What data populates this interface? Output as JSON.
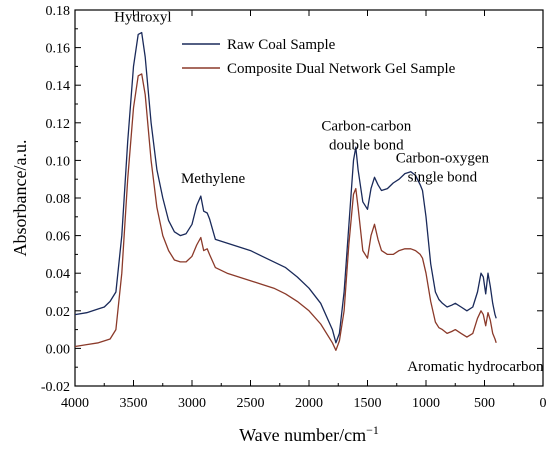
{
  "chart_data": {
    "type": "line",
    "title": "",
    "xlabel": "Wave number/cm",
    "xlabel_sup": "−1",
    "ylabel": "Absorbance/a.u.",
    "xlim": [
      4000,
      0
    ],
    "x_reversed": true,
    "ylim": [
      -0.02,
      0.18
    ],
    "x_ticks": [
      4000,
      3500,
      3000,
      2500,
      2000,
      1500,
      1000,
      500,
      0
    ],
    "y_ticks": [
      -0.02,
      0.0,
      0.02,
      0.04,
      0.06,
      0.08,
      0.1,
      0.12,
      0.14,
      0.16,
      0.18
    ],
    "y_tick_labels": [
      "-0.02",
      "0.00",
      "0.02",
      "0.04",
      "0.06",
      "0.08",
      "0.10",
      "0.12",
      "0.14",
      "0.16",
      "0.18"
    ],
    "grid": false,
    "legend_position": "top-right",
    "series": [
      {
        "name": "Raw Coal Sample",
        "color": "#1a2a5a",
        "points": [
          [
            4000,
            0.018
          ],
          [
            3900,
            0.019
          ],
          [
            3800,
            0.021
          ],
          [
            3750,
            0.022
          ],
          [
            3700,
            0.025
          ],
          [
            3650,
            0.03
          ],
          [
            3600,
            0.06
          ],
          [
            3550,
            0.11
          ],
          [
            3500,
            0.15
          ],
          [
            3460,
            0.167
          ],
          [
            3430,
            0.168
          ],
          [
            3400,
            0.155
          ],
          [
            3350,
            0.12
          ],
          [
            3300,
            0.095
          ],
          [
            3250,
            0.08
          ],
          [
            3200,
            0.068
          ],
          [
            3150,
            0.062
          ],
          [
            3100,
            0.06
          ],
          [
            3050,
            0.061
          ],
          [
            3000,
            0.066
          ],
          [
            2960,
            0.076
          ],
          [
            2925,
            0.081
          ],
          [
            2900,
            0.073
          ],
          [
            2870,
            0.072
          ],
          [
            2850,
            0.069
          ],
          [
            2800,
            0.058
          ],
          [
            2700,
            0.056
          ],
          [
            2600,
            0.054
          ],
          [
            2500,
            0.052
          ],
          [
            2400,
            0.049
          ],
          [
            2300,
            0.046
          ],
          [
            2200,
            0.043
          ],
          [
            2100,
            0.038
          ],
          [
            2000,
            0.032
          ],
          [
            1900,
            0.024
          ],
          [
            1800,
            0.01
          ],
          [
            1770,
            0.003
          ],
          [
            1740,
            0.008
          ],
          [
            1700,
            0.03
          ],
          [
            1660,
            0.065
          ],
          [
            1620,
            0.1
          ],
          [
            1600,
            0.107
          ],
          [
            1580,
            0.095
          ],
          [
            1540,
            0.078
          ],
          [
            1500,
            0.074
          ],
          [
            1470,
            0.085
          ],
          [
            1440,
            0.091
          ],
          [
            1410,
            0.087
          ],
          [
            1380,
            0.084
          ],
          [
            1330,
            0.085
          ],
          [
            1280,
            0.088
          ],
          [
            1230,
            0.09
          ],
          [
            1180,
            0.093
          ],
          [
            1130,
            0.094
          ],
          [
            1090,
            0.092
          ],
          [
            1050,
            0.087
          ],
          [
            1030,
            0.084
          ],
          [
            1000,
            0.07
          ],
          [
            960,
            0.045
          ],
          [
            920,
            0.03
          ],
          [
            890,
            0.026
          ],
          [
            860,
            0.024
          ],
          [
            820,
            0.022
          ],
          [
            780,
            0.023
          ],
          [
            750,
            0.024
          ],
          [
            700,
            0.022
          ],
          [
            650,
            0.02
          ],
          [
            600,
            0.022
          ],
          [
            560,
            0.03
          ],
          [
            530,
            0.04
          ],
          [
            510,
            0.038
          ],
          [
            490,
            0.029
          ],
          [
            470,
            0.04
          ],
          [
            450,
            0.033
          ],
          [
            430,
            0.024
          ],
          [
            410,
            0.018
          ],
          [
            400,
            0.016
          ]
        ]
      },
      {
        "name": "Composite Dual Network Gel Sample",
        "color": "#8b3a2a",
        "points": [
          [
            4000,
            0.001
          ],
          [
            3900,
            0.002
          ],
          [
            3800,
            0.003
          ],
          [
            3750,
            0.004
          ],
          [
            3700,
            0.005
          ],
          [
            3650,
            0.01
          ],
          [
            3600,
            0.04
          ],
          [
            3550,
            0.09
          ],
          [
            3500,
            0.128
          ],
          [
            3460,
            0.145
          ],
          [
            3430,
            0.146
          ],
          [
            3400,
            0.135
          ],
          [
            3350,
            0.1
          ],
          [
            3300,
            0.075
          ],
          [
            3250,
            0.06
          ],
          [
            3200,
            0.052
          ],
          [
            3150,
            0.047
          ],
          [
            3100,
            0.046
          ],
          [
            3050,
            0.046
          ],
          [
            3000,
            0.049
          ],
          [
            2960,
            0.055
          ],
          [
            2925,
            0.059
          ],
          [
            2900,
            0.052
          ],
          [
            2870,
            0.053
          ],
          [
            2850,
            0.05
          ],
          [
            2800,
            0.043
          ],
          [
            2700,
            0.04
          ],
          [
            2600,
            0.038
          ],
          [
            2500,
            0.036
          ],
          [
            2400,
            0.034
          ],
          [
            2300,
            0.032
          ],
          [
            2200,
            0.029
          ],
          [
            2100,
            0.025
          ],
          [
            2000,
            0.02
          ],
          [
            1900,
            0.013
          ],
          [
            1800,
            0.003
          ],
          [
            1770,
            -0.001
          ],
          [
            1740,
            0.004
          ],
          [
            1700,
            0.02
          ],
          [
            1660,
            0.055
          ],
          [
            1620,
            0.082
          ],
          [
            1600,
            0.085
          ],
          [
            1580,
            0.075
          ],
          [
            1540,
            0.052
          ],
          [
            1500,
            0.048
          ],
          [
            1470,
            0.06
          ],
          [
            1440,
            0.066
          ],
          [
            1410,
            0.058
          ],
          [
            1380,
            0.052
          ],
          [
            1330,
            0.05
          ],
          [
            1280,
            0.05
          ],
          [
            1230,
            0.052
          ],
          [
            1180,
            0.053
          ],
          [
            1130,
            0.053
          ],
          [
            1090,
            0.052
          ],
          [
            1050,
            0.05
          ],
          [
            1030,
            0.048
          ],
          [
            1000,
            0.04
          ],
          [
            960,
            0.025
          ],
          [
            920,
            0.014
          ],
          [
            890,
            0.011
          ],
          [
            860,
            0.01
          ],
          [
            820,
            0.008
          ],
          [
            780,
            0.009
          ],
          [
            750,
            0.01
          ],
          [
            700,
            0.008
          ],
          [
            650,
            0.006
          ],
          [
            600,
            0.008
          ],
          [
            560,
            0.016
          ],
          [
            530,
            0.02
          ],
          [
            510,
            0.018
          ],
          [
            490,
            0.012
          ],
          [
            470,
            0.019
          ],
          [
            450,
            0.015
          ],
          [
            430,
            0.008
          ],
          [
            410,
            0.005
          ],
          [
            400,
            0.003
          ]
        ]
      }
    ],
    "annotations": [
      {
        "id": "hydroxyl",
        "lines": [
          "Hydroxyl"
        ],
        "x": 3420,
        "y": 0.174,
        "anchor": "middle"
      },
      {
        "id": "methylene",
        "lines": [
          "Methylene"
        ],
        "x": 2820,
        "y": 0.088,
        "anchor": "middle"
      },
      {
        "id": "carbon-carbon",
        "lines": [
          "Carbon-carbon",
          "double bond"
        ],
        "x": 1510,
        "y": 0.116,
        "anchor": "middle"
      },
      {
        "id": "carbon-oxygen",
        "lines": [
          "Carbon-oxygen",
          "single bond"
        ],
        "x": 860,
        "y": 0.099,
        "anchor": "middle"
      },
      {
        "id": "aromatic",
        "lines": [
          "Aromatic hydrocarbon"
        ],
        "x": 1160,
        "y": -0.012,
        "anchor": "start"
      }
    ]
  }
}
